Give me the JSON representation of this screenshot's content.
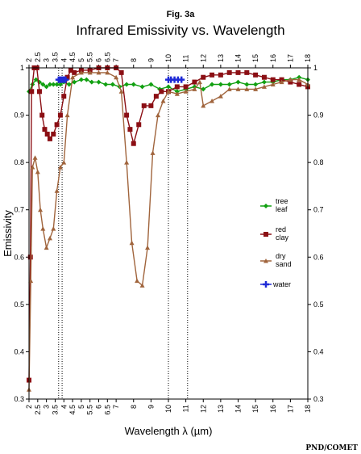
{
  "figure_label": "Fig. 3a",
  "credit": "PND/COMET",
  "chart_data": {
    "type": "line",
    "title": "Infrared Emissivity vs. Wavelength",
    "xlabel": "Wavelength λ (µm)",
    "ylabel": "Emissivity",
    "xlim": [
      2,
      18
    ],
    "ylim": [
      0.3,
      1.0
    ],
    "x_ticks": [
      "2",
      "2.5",
      "3",
      "3.5",
      "4",
      "4.5",
      "5",
      "5.5",
      "6",
      "6.5",
      "7",
      "8",
      "9",
      "10",
      "11",
      "12",
      "13",
      "14",
      "15",
      "16",
      "17",
      "18"
    ],
    "y_ticks_left": [
      "0.3",
      "0.4",
      "0.5",
      "0.6",
      "0.7",
      "0.8",
      "0.9",
      "1"
    ],
    "y_ticks_right": [
      "0.3",
      "0.4",
      "0.5",
      "0.6",
      "0.7",
      "0.8",
      "0.9",
      "1"
    ],
    "legend_position": "right-middle",
    "grid": false,
    "vlines": [
      3.7,
      3.9,
      10.0,
      11.1
    ],
    "series": [
      {
        "name": "tree leaf",
        "legend_lines": [
          "tree",
          "leaf"
        ],
        "color": "#11a011",
        "marker": "diamond",
        "x": [
          2.0,
          2.2,
          2.4,
          2.6,
          2.8,
          3.0,
          3.2,
          3.4,
          3.6,
          3.8,
          4.0,
          4.3,
          4.6,
          5.0,
          5.3,
          5.6,
          6.0,
          6.4,
          6.8,
          7.2,
          7.6,
          8.0,
          8.5,
          9.0,
          9.5,
          10.0,
          10.5,
          11.0,
          11.5,
          12.0,
          12.5,
          13.0,
          13.5,
          14.0,
          14.5,
          15.0,
          15.5,
          16.0,
          16.5,
          17.0,
          17.5,
          18.0
        ],
        "y": [
          0.95,
          0.965,
          0.975,
          0.97,
          0.965,
          0.96,
          0.965,
          0.965,
          0.965,
          0.965,
          0.97,
          0.965,
          0.97,
          0.975,
          0.975,
          0.97,
          0.97,
          0.965,
          0.965,
          0.96,
          0.965,
          0.965,
          0.96,
          0.965,
          0.955,
          0.96,
          0.95,
          0.955,
          0.96,
          0.955,
          0.965,
          0.965,
          0.965,
          0.97,
          0.965,
          0.965,
          0.97,
          0.97,
          0.975,
          0.975,
          0.98,
          0.975
        ]
      },
      {
        "name": "red clay",
        "legend_lines": [
          "red",
          "clay"
        ],
        "color": "#8b0f14",
        "marker": "square",
        "x": [
          2.0,
          2.08,
          2.15,
          2.3,
          2.45,
          2.6,
          2.75,
          2.9,
          3.05,
          3.2,
          3.4,
          3.6,
          3.8,
          4.0,
          4.2,
          4.4,
          4.6,
          5.0,
          5.5,
          6.0,
          6.5,
          7.0,
          7.3,
          7.6,
          7.8,
          8.0,
          8.3,
          8.6,
          9.0,
          9.3,
          9.6,
          10.0,
          10.5,
          11.0,
          11.5,
          12.0,
          12.5,
          13.0,
          13.5,
          14.0,
          14.5,
          15.0,
          15.5,
          16.0,
          16.5,
          17.0,
          17.5,
          18.0
        ],
        "y": [
          0.34,
          0.6,
          0.95,
          1.0,
          1.0,
          0.95,
          0.9,
          0.87,
          0.86,
          0.85,
          0.86,
          0.88,
          0.9,
          0.94,
          0.98,
          0.995,
          0.99,
          0.995,
          0.995,
          1.0,
          1.0,
          1.0,
          0.99,
          0.9,
          0.87,
          0.84,
          0.88,
          0.92,
          0.92,
          0.94,
          0.95,
          0.95,
          0.96,
          0.96,
          0.97,
          0.98,
          0.985,
          0.985,
          0.99,
          0.99,
          0.99,
          0.985,
          0.98,
          0.975,
          0.975,
          0.97,
          0.965,
          0.96
        ]
      },
      {
        "name": "dry sand",
        "legend_lines": [
          "dry",
          "sand"
        ],
        "color": "#a0643c",
        "marker": "triangle",
        "x": [
          2.0,
          2.1,
          2.2,
          2.35,
          2.5,
          2.65,
          2.8,
          3.0,
          3.2,
          3.4,
          3.6,
          3.8,
          4.0,
          4.2,
          4.5,
          5.0,
          5.5,
          6.0,
          6.5,
          7.0,
          7.3,
          7.6,
          7.9,
          8.2,
          8.5,
          8.8,
          9.1,
          9.4,
          9.7,
          10.0,
          10.5,
          11.0,
          11.5,
          11.8,
          12.0,
          12.5,
          13.0,
          13.5,
          14.0,
          14.5,
          15.0,
          15.5,
          16.0,
          16.5,
          17.0,
          17.5,
          18.0
        ],
        "y": [
          0.32,
          0.55,
          0.79,
          0.81,
          0.78,
          0.7,
          0.66,
          0.62,
          0.64,
          0.66,
          0.74,
          0.79,
          0.8,
          0.9,
          0.98,
          0.99,
          0.99,
          0.99,
          0.99,
          0.98,
          0.95,
          0.8,
          0.63,
          0.55,
          0.54,
          0.62,
          0.82,
          0.9,
          0.93,
          0.95,
          0.945,
          0.95,
          0.955,
          0.97,
          0.92,
          0.93,
          0.94,
          0.955,
          0.955,
          0.955,
          0.955,
          0.96,
          0.965,
          0.97,
          0.975,
          0.975,
          0.965
        ]
      },
      {
        "name": "water",
        "legend_lines": [
          "water"
        ],
        "color": "#1f2bd6",
        "marker": "cross",
        "segments": [
          {
            "x": [
              3.7,
              3.8,
              3.9,
              4.0,
              4.1
            ],
            "y": [
              0.975,
              0.975,
              0.975,
              0.975,
              0.975
            ]
          },
          {
            "x": [
              10.0,
              10.15,
              10.35,
              10.55,
              10.75
            ],
            "y": [
              0.975,
              0.975,
              0.975,
              0.975,
              0.975
            ]
          }
        ]
      }
    ]
  }
}
